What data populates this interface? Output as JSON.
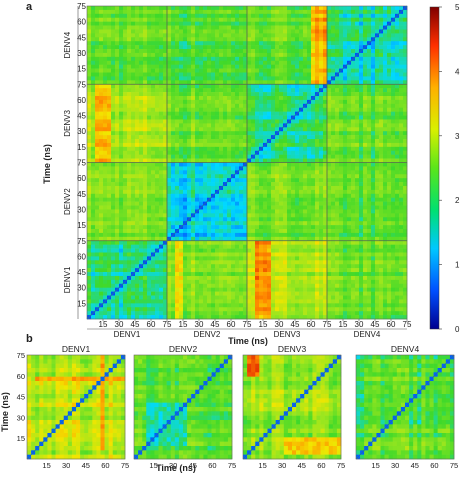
{
  "panel_a": {
    "label": "a",
    "ylabel": "Time (ns)",
    "xlabel": "Time (ns)",
    "groups": [
      "DENV1",
      "DENV2",
      "DENV3",
      "DENV4"
    ],
    "ticks": [
      "15",
      "30",
      "45",
      "60",
      "75"
    ],
    "colorbar_ticks": [
      "0",
      "1",
      "2",
      "3",
      "4",
      "5"
    ]
  },
  "panel_b": {
    "label": "b",
    "ylabel": "Time (ns)",
    "xlabel": "Time (ns)",
    "titles": [
      "DENV1",
      "DENV2",
      "DENV3",
      "DENV4"
    ],
    "yticks": [
      "15",
      "30",
      "45",
      "60",
      "75"
    ],
    "xticks": [
      "15",
      "30",
      "45",
      "60",
      "75"
    ]
  },
  "colors": {
    "scale": [
      "#00008f",
      "#0050ff",
      "#00d9ff",
      "#3fd92a",
      "#9be61e",
      "#f2e600",
      "#ff8c00",
      "#e01a00",
      "#800000"
    ],
    "divider": "#556655"
  },
  "chart_data": [
    {
      "type": "heatmap",
      "title": "",
      "xlabel": "Time (ns)",
      "ylabel": "Time (ns)",
      "x_groups": [
        "DENV1",
        "DENV2",
        "DENV3",
        "DENV4"
      ],
      "y_groups": [
        "DENV1",
        "DENV2",
        "DENV3",
        "DENV4"
      ],
      "ticks_per_group": [
        15,
        30,
        45,
        60,
        75
      ],
      "color_range": [
        0,
        5
      ],
      "block_mean_values": [
        [
          1.6,
          2.3,
          2.6,
          2.1
        ],
        [
          2.3,
          1.3,
          2.2,
          2.0
        ],
        [
          2.6,
          2.2,
          1.7,
          2.1
        ],
        [
          2.1,
          2.0,
          2.1,
          1.5
        ]
      ],
      "diagonal_value": 0.6,
      "hotspots": [
        {
          "row": "DENV1",
          "col": "DENV3",
          "time_range": [
            5,
            20
          ],
          "value": 3.8
        },
        {
          "row": "DENV1",
          "col": "DENV2",
          "time_range": [
            5,
            15
          ],
          "value": 3.2
        },
        {
          "row": "DENV3",
          "col": "DENV1",
          "time_range": [
            5,
            20
          ],
          "value": 3.4
        },
        {
          "row": "DENV4",
          "col": "DENV3",
          "time_range": [
            60,
            75
          ],
          "value": 3.4
        }
      ]
    },
    {
      "type": "heatmap",
      "title": "DENV1",
      "xlabel": "Time (ns)",
      "ylabel": "Time (ns)",
      "xlim": [
        0,
        75
      ],
      "ylim": [
        0,
        75
      ],
      "color_range": [
        0,
        5
      ],
      "mean_value": 2.7,
      "hotspots": [
        {
          "x": [
            5,
            75
          ],
          "y": [
            55,
            58
          ],
          "value": 3.6
        },
        {
          "x": [
            55,
            58
          ],
          "y": [
            5,
            75
          ],
          "value": 3.6
        }
      ]
    },
    {
      "type": "heatmap",
      "title": "DENV2",
      "xlabel": "Time (ns)",
      "ylabel": "Time (ns)",
      "xlim": [
        0,
        75
      ],
      "ylim": [
        0,
        75
      ],
      "color_range": [
        0,
        5
      ],
      "mean_value": 2.0,
      "hotspots": [
        {
          "x": [
            10,
            40
          ],
          "y": [
            10,
            40
          ],
          "value": 1.5
        }
      ]
    },
    {
      "type": "heatmap",
      "title": "DENV3",
      "xlabel": "Time (ns)",
      "ylabel": "Time (ns)",
      "xlim": [
        0,
        75
      ],
      "ylim": [
        0,
        75
      ],
      "color_range": [
        0,
        5
      ],
      "mean_value": 2.5,
      "hotspots": [
        {
          "x": [
            2,
            12
          ],
          "y": [
            58,
            75
          ],
          "value": 4.0
        },
        {
          "x": [
            58,
            75
          ],
          "y": [
            2,
            12
          ],
          "value": 4.0
        },
        {
          "x": [
            30,
            75
          ],
          "y": [
            2,
            15
          ],
          "value": 3.3
        }
      ]
    },
    {
      "type": "heatmap",
      "title": "DENV4",
      "xlabel": "Time (ns)",
      "ylabel": "Time (ns)",
      "xlim": [
        0,
        75
      ],
      "ylim": [
        0,
        75
      ],
      "color_range": [
        0,
        5
      ],
      "mean_value": 2.0,
      "hotspots": []
    }
  ]
}
